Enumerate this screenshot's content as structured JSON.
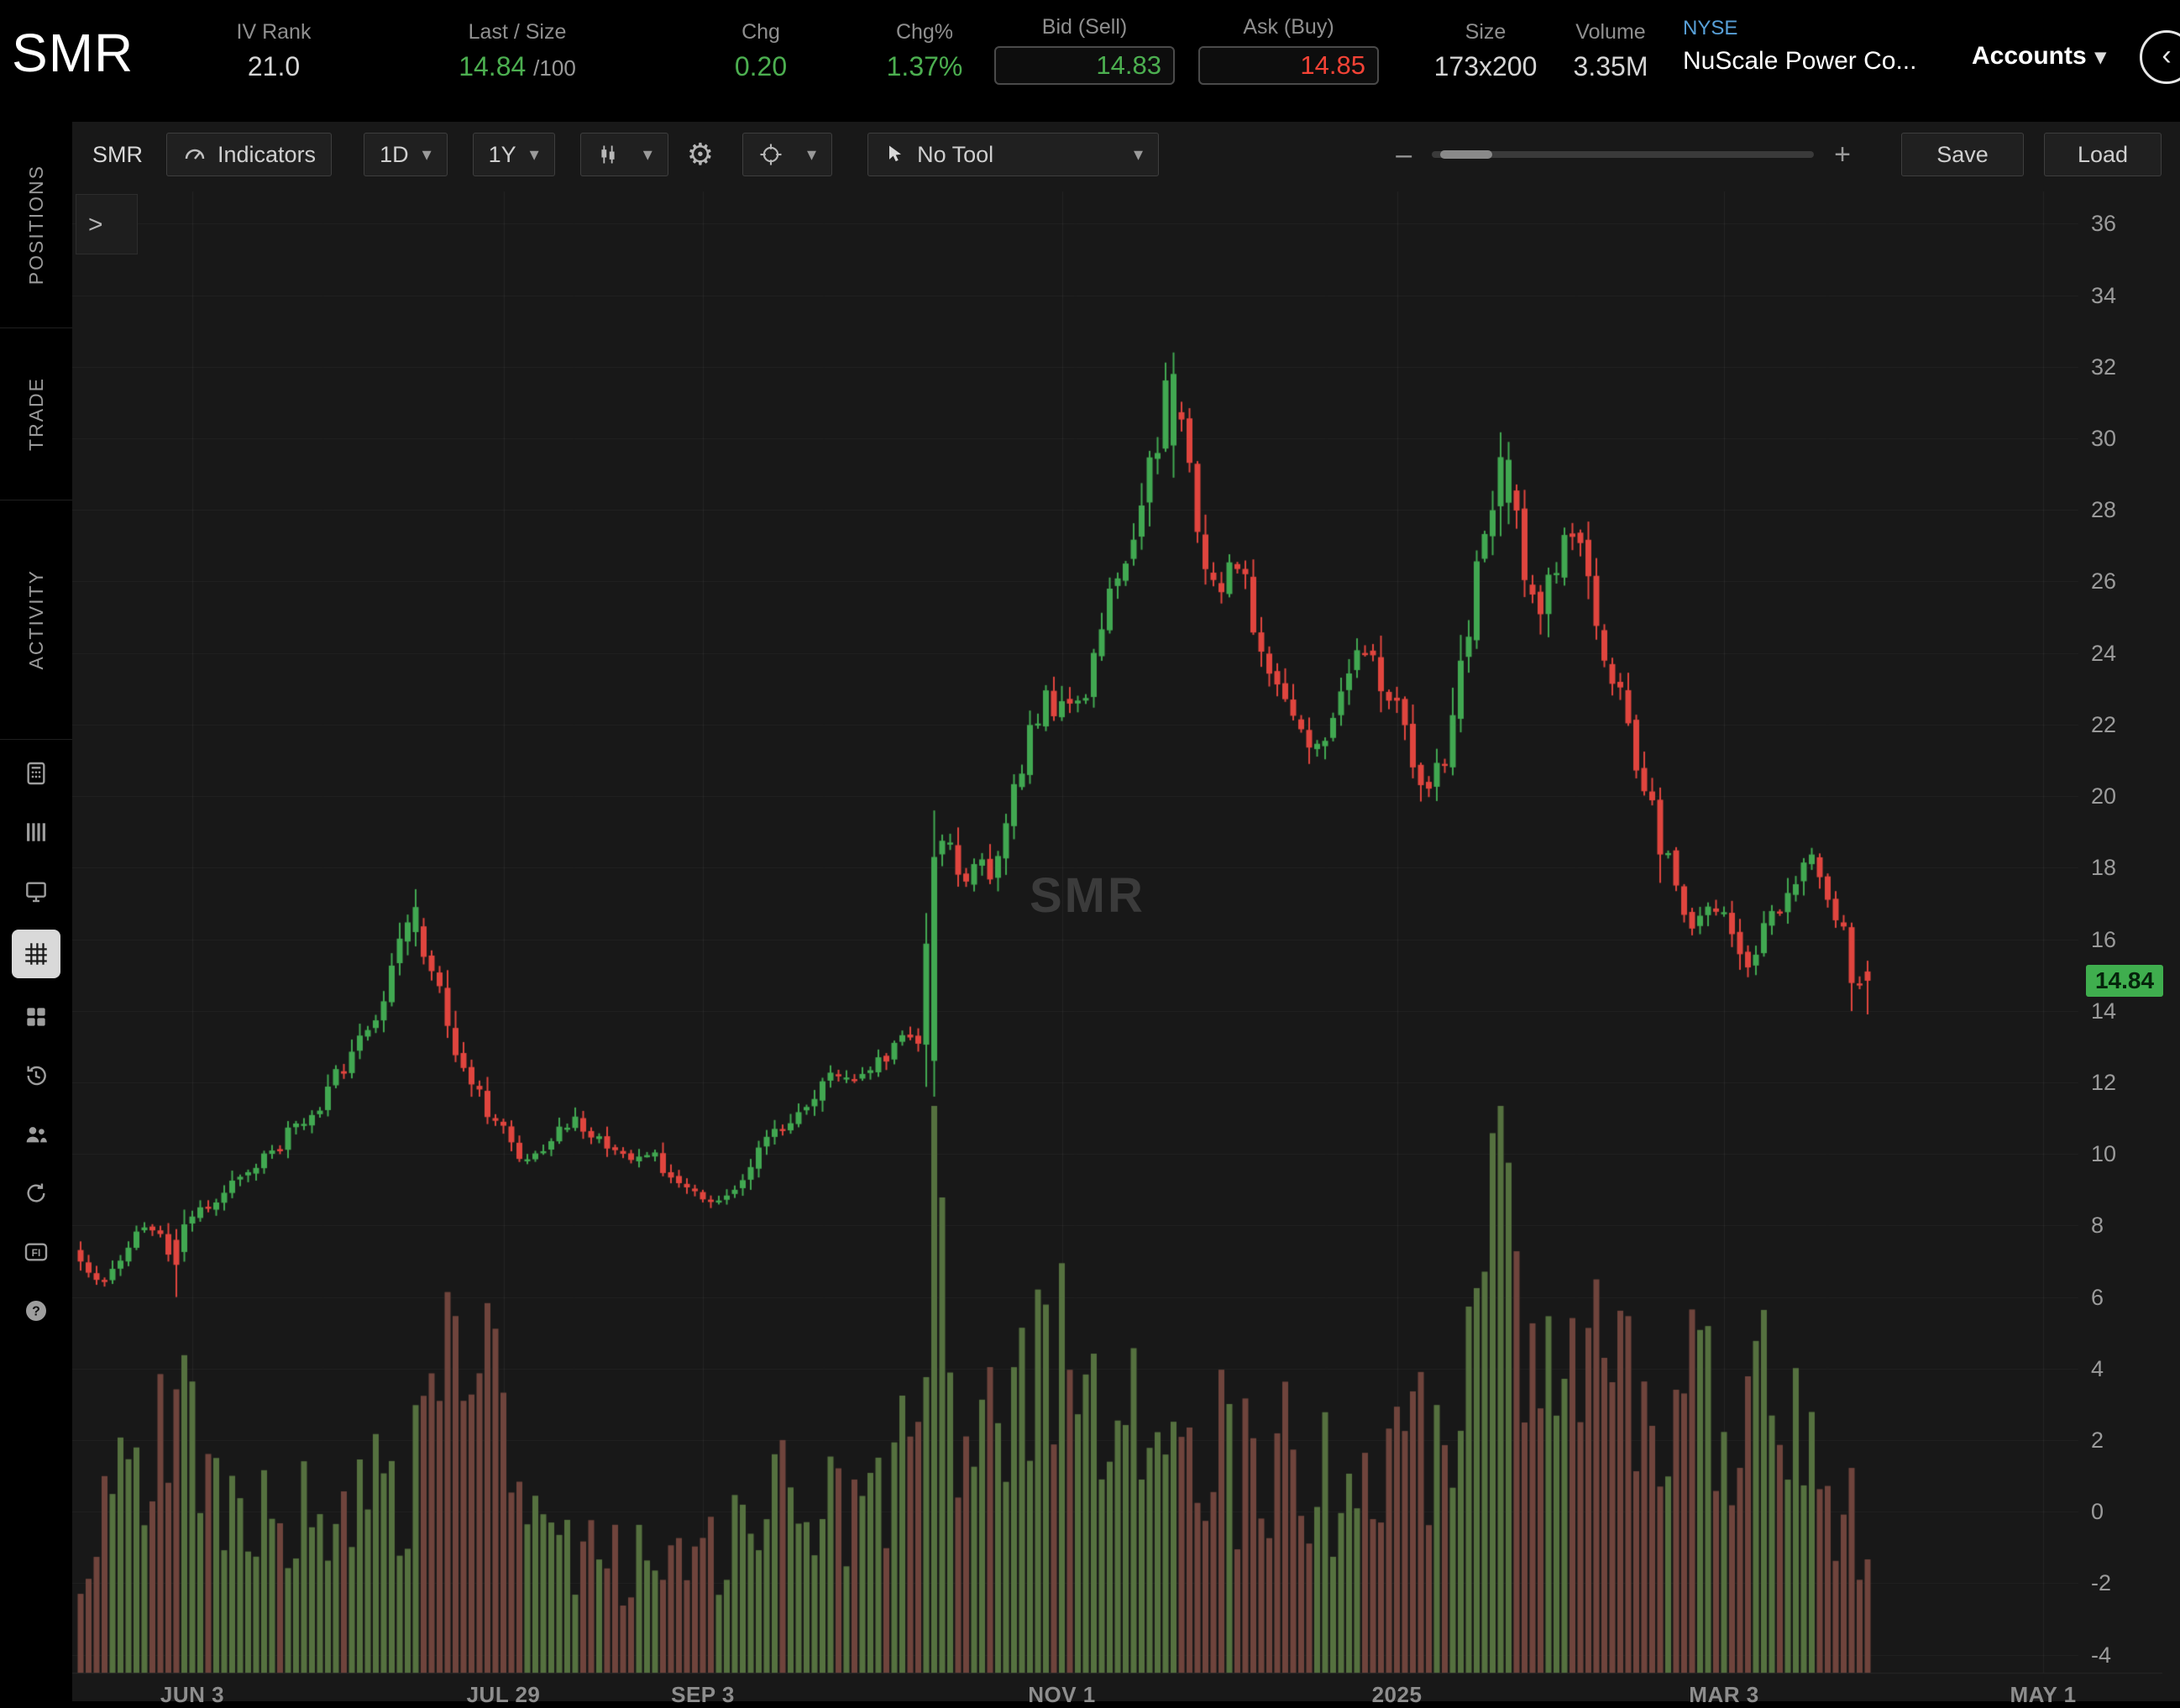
{
  "header": {
    "symbol": "SMR",
    "iv_rank": {
      "label": "IV Rank",
      "value": "21.0"
    },
    "last_size": {
      "label": "Last / Size",
      "value": "14.84",
      "suffix": "/100"
    },
    "chg": {
      "label": "Chg",
      "value": "0.20"
    },
    "chg_pct": {
      "label": "Chg%",
      "value": "1.37%"
    },
    "bid": {
      "label": "Bid (Sell)",
      "value": "14.83"
    },
    "ask": {
      "label": "Ask (Buy)",
      "value": "14.85"
    },
    "size": {
      "label": "Size",
      "value": "173x200"
    },
    "volume": {
      "label": "Volume",
      "value": "3.35M"
    },
    "exchange": "NYSE",
    "company": "NuScale Power Co...",
    "accounts_label": "Accounts",
    "collapse_glyph": "‹"
  },
  "sidebar": {
    "tabs": [
      "POSITIONS",
      "TRADE",
      "ACTIVITY"
    ],
    "icons": [
      "calculator-icon",
      "columns-icon",
      "monitor-icon",
      "chart-grid-icon",
      "apps-grid-icon",
      "history-icon",
      "people-icon",
      "replay-icon",
      "fixed-income-icon",
      "help-icon"
    ],
    "active_icon": "chart-grid-icon"
  },
  "toolbar": {
    "symbol_label": "SMR",
    "indicators_label": "Indicators",
    "timeframe": "1D",
    "range": "1Y",
    "tool_label": "No Tool",
    "save_label": "Save",
    "load_label": "Load",
    "zoom_minus": "–",
    "zoom_plus": "+",
    "gear_glyph": "⚙",
    "icons": [
      "gauge-icon",
      "candlestick-type-icon",
      "gear-icon",
      "crosshair-icon",
      "cursor-icon"
    ]
  },
  "chart": {
    "watermark": "SMR",
    "expander_label": ">",
    "last_price_tag": "14.84",
    "y_ticks": [
      36,
      34,
      32,
      30,
      28,
      26,
      24,
      22,
      20,
      18,
      16,
      14,
      12,
      10,
      8,
      6,
      4,
      2,
      0,
      -2,
      -4
    ],
    "x_labels": [
      {
        "text": "JUN 3",
        "i": 14
      },
      {
        "text": "JUL 29",
        "i": 53
      },
      {
        "text": "SEP 3",
        "i": 78
      },
      {
        "text": "NOV 1",
        "i": 123
      },
      {
        "text": "2025",
        "i": 165
      },
      {
        "text": "MAR 3",
        "i": 206
      },
      {
        "text": "MAY 1",
        "i": 246
      }
    ],
    "colors": {
      "up": "#41a851",
      "down": "#e0453e",
      "vol_up": "#55713f",
      "vol_down": "#6f443c",
      "grid": "rgba(255,255,255,0.045)",
      "vgrid": "rgba(255,255,255,0.06)",
      "tag_bg": "#3fae4e"
    }
  },
  "chart_data": {
    "type": "candlestick",
    "symbol": "SMR",
    "interval": "1D",
    "range": "1Y",
    "last_price": 14.84,
    "num_candles": 225,
    "price_axis_range": [
      -4.5,
      36.9
    ],
    "x_axis_labels": [
      "JUN 3",
      "JUL 29",
      "SEP 3",
      "NOV 1",
      "2025",
      "MAR 3",
      "MAY 1"
    ],
    "price_anchors": [
      [
        0,
        7.3
      ],
      [
        3,
        6.3
      ],
      [
        7,
        7.6
      ],
      [
        10,
        8.0
      ],
      [
        12,
        7.0
      ],
      [
        14,
        8.3
      ],
      [
        18,
        8.8
      ],
      [
        22,
        9.6
      ],
      [
        26,
        10.4
      ],
      [
        30,
        11.3
      ],
      [
        34,
        12.6
      ],
      [
        38,
        14.2
      ],
      [
        42,
        16.9
      ],
      [
        46,
        14.0
      ],
      [
        48,
        12.3
      ],
      [
        53,
        10.8
      ],
      [
        56,
        9.6
      ],
      [
        59,
        10.2
      ],
      [
        62,
        10.9
      ],
      [
        65,
        10.4
      ],
      [
        68,
        9.8
      ],
      [
        71,
        10.1
      ],
      [
        74,
        9.6
      ],
      [
        77,
        9.0
      ],
      [
        80,
        8.4
      ],
      [
        83,
        9.3
      ],
      [
        86,
        10.3
      ],
      [
        90,
        11.2
      ],
      [
        95,
        12.3
      ],
      [
        98,
        12.0
      ],
      [
        101,
        12.8
      ],
      [
        104,
        13.2
      ],
      [
        106,
        13.0
      ],
      [
        107,
        18.3
      ],
      [
        109,
        19.0
      ],
      [
        111,
        17.8
      ],
      [
        113,
        18.6
      ],
      [
        115,
        17.9
      ],
      [
        117,
        19.6
      ],
      [
        119,
        21.3
      ],
      [
        121,
        22.4
      ],
      [
        123,
        22.8
      ],
      [
        125,
        22.2
      ],
      [
        127,
        23.6
      ],
      [
        129,
        25.2
      ],
      [
        131,
        26.4
      ],
      [
        133,
        27.8
      ],
      [
        135,
        29.6
      ],
      [
        137,
        31.8
      ],
      [
        139,
        29.5
      ],
      [
        141,
        27.2
      ],
      [
        143,
        26.0
      ],
      [
        145,
        26.8
      ],
      [
        147,
        25.4
      ],
      [
        149,
        24.2
      ],
      [
        151,
        23.2
      ],
      [
        153,
        21.8
      ],
      [
        155,
        20.8
      ],
      [
        157,
        21.9
      ],
      [
        159,
        23.2
      ],
      [
        161,
        24.2
      ],
      [
        163,
        23.4
      ],
      [
        165,
        23.0
      ],
      [
        167,
        21.2
      ],
      [
        169,
        19.6
      ],
      [
        171,
        20.8
      ],
      [
        173,
        23.0
      ],
      [
        175,
        25.6
      ],
      [
        177,
        27.4
      ],
      [
        179,
        29.4
      ],
      [
        181,
        27.0
      ],
      [
        183,
        24.6
      ],
      [
        185,
        26.2
      ],
      [
        187,
        27.8
      ],
      [
        189,
        26.4
      ],
      [
        191,
        24.6
      ],
      [
        193,
        23.0
      ],
      [
        195,
        21.4
      ],
      [
        197,
        19.8
      ],
      [
        199,
        18.4
      ],
      [
        201,
        17.2
      ],
      [
        203,
        16.4
      ],
      [
        205,
        17.0
      ],
      [
        207,
        16.2
      ],
      [
        209,
        15.2
      ],
      [
        211,
        16.0
      ],
      [
        213,
        16.8
      ],
      [
        215,
        17.6
      ],
      [
        217,
        18.6
      ],
      [
        219,
        17.8
      ],
      [
        221,
        16.6
      ],
      [
        222,
        15.6
      ],
      [
        223,
        14.6
      ],
      [
        224,
        14.84
      ]
    ],
    "volume_anchors": [
      [
        0,
        0.22
      ],
      [
        5,
        0.3
      ],
      [
        12,
        0.5
      ],
      [
        16,
        0.28
      ],
      [
        25,
        0.26
      ],
      [
        35,
        0.3
      ],
      [
        42,
        0.35
      ],
      [
        50,
        0.62
      ],
      [
        55,
        0.28
      ],
      [
        65,
        0.2
      ],
      [
        75,
        0.18
      ],
      [
        85,
        0.25
      ],
      [
        88,
        0.5
      ],
      [
        92,
        0.3
      ],
      [
        100,
        0.3
      ],
      [
        105,
        0.45
      ],
      [
        107,
        1.0
      ],
      [
        108,
        0.7
      ],
      [
        110,
        0.5
      ],
      [
        112,
        0.55
      ],
      [
        114,
        0.85
      ],
      [
        116,
        0.45
      ],
      [
        120,
        0.5
      ],
      [
        124,
        0.8
      ],
      [
        127,
        0.5
      ],
      [
        130,
        0.45
      ],
      [
        134,
        0.4
      ],
      [
        138,
        0.5
      ],
      [
        142,
        0.4
      ],
      [
        146,
        0.35
      ],
      [
        150,
        0.38
      ],
      [
        155,
        0.35
      ],
      [
        160,
        0.3
      ],
      [
        165,
        0.35
      ],
      [
        170,
        0.45
      ],
      [
        174,
        0.5
      ],
      [
        178,
        0.95
      ],
      [
        180,
        0.6
      ],
      [
        183,
        0.55
      ],
      [
        186,
        0.5
      ],
      [
        188,
        0.6
      ],
      [
        191,
        0.5
      ],
      [
        194,
        0.45
      ],
      [
        197,
        0.4
      ],
      [
        200,
        0.45
      ],
      [
        203,
        0.5
      ],
      [
        206,
        0.45
      ],
      [
        209,
        0.5
      ],
      [
        212,
        0.45
      ],
      [
        215,
        0.4
      ],
      [
        218,
        0.35
      ],
      [
        221,
        0.3
      ],
      [
        224,
        0.22
      ]
    ],
    "special_candles": [
      {
        "i": 12,
        "o": 7.6,
        "h": 7.9,
        "l": 6.0,
        "c": 6.9,
        "v": 0.5
      },
      {
        "i": 42,
        "o": 16.2,
        "h": 17.4,
        "l": 15.8,
        "c": 16.9
      },
      {
        "i": 107,
        "o": 12.6,
        "h": 19.6,
        "l": 11.6,
        "c": 18.3,
        "v": 1.0
      },
      {
        "i": 137,
        "o": 29.8,
        "h": 32.4,
        "l": 28.9,
        "c": 31.8
      },
      {
        "i": 179,
        "o": 28.2,
        "h": 29.9,
        "l": 27.6,
        "c": 29.4
      },
      {
        "i": 224,
        "o": 15.1,
        "h": 15.4,
        "l": 13.9,
        "c": 14.84,
        "v": 0.2
      }
    ]
  }
}
